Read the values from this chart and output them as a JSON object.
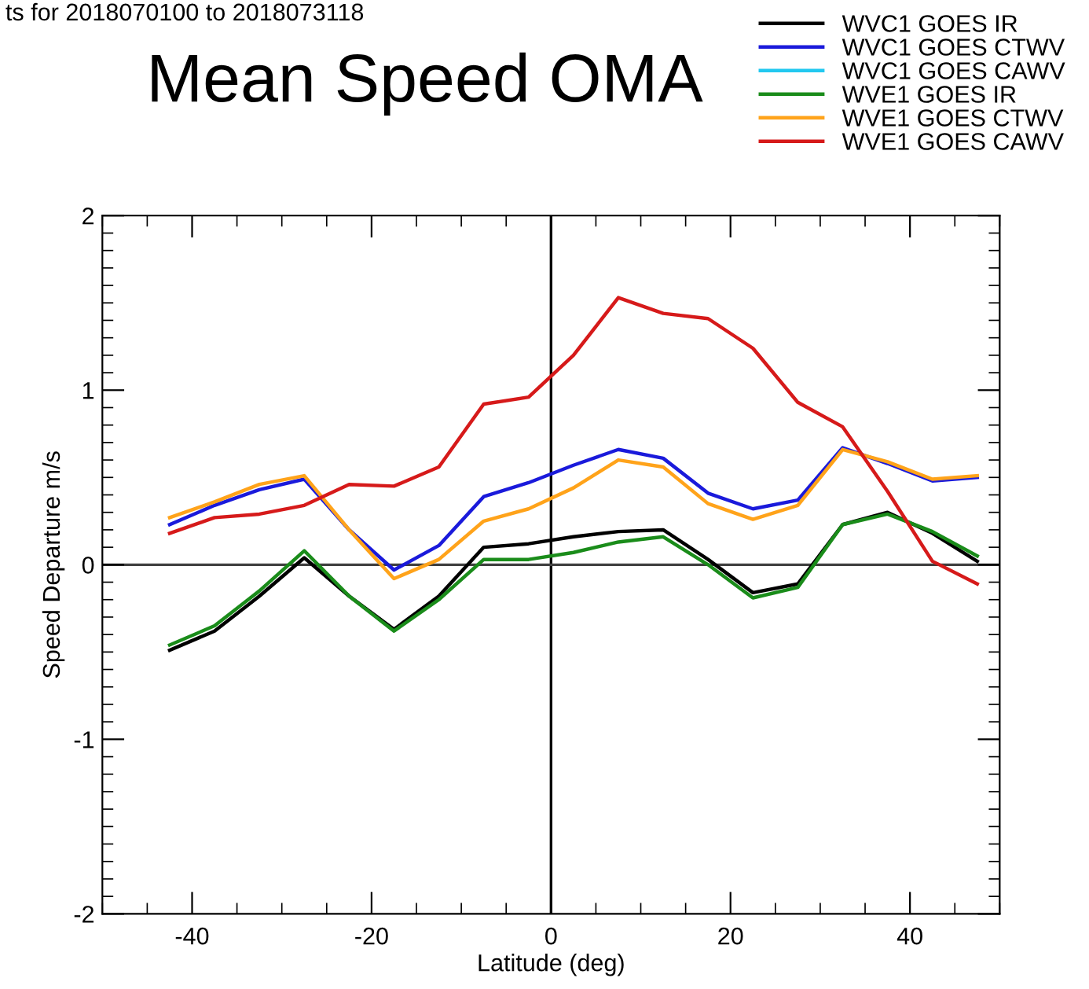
{
  "chart_data": {
    "type": "line",
    "title": "Mean Speed OMA",
    "xlabel": "Latitude (deg)",
    "ylabel": "Speed Departure m/s",
    "annotations": [
      "ts for 2018070100 to 2018073118"
    ],
    "x": [
      -42.5,
      -37.5,
      -32.5,
      -27.5,
      -22.5,
      -17.5,
      -12.5,
      -7.5,
      -2.5,
      2.5,
      7.5,
      12.5,
      17.5,
      22.5,
      27.5,
      32.5,
      37.5,
      42.5,
      47.5
    ],
    "series": [
      {
        "name": "WVC1 GOES IR",
        "color": "#000000",
        "values": [
          -0.49,
          -0.38,
          -0.18,
          0.04,
          -0.18,
          -0.37,
          -0.18,
          0.1,
          0.12,
          0.16,
          0.19,
          0.2,
          0.03,
          -0.16,
          -0.11,
          0.23,
          0.3,
          0.18,
          0.02
        ]
      },
      {
        "name": "WVC1 GOES CTWV",
        "color": "#1a1adb",
        "values": [
          0.23,
          0.34,
          0.43,
          0.49,
          0.2,
          -0.03,
          0.11,
          0.39,
          0.47,
          0.57,
          0.66,
          0.61,
          0.41,
          0.32,
          0.37,
          0.67,
          0.58,
          0.48,
          0.5
        ]
      },
      {
        "name": "WVC1 GOES CAWV",
        "color": "#22c8f0",
        "values": [
          null,
          null,
          null,
          null,
          null,
          null,
          null,
          null,
          null,
          null,
          null,
          null,
          null,
          null,
          null,
          null,
          null,
          null,
          null
        ]
      },
      {
        "name": "WVE1 GOES IR",
        "color": "#1a8c1a",
        "values": [
          -0.46,
          -0.35,
          -0.15,
          0.08,
          -0.18,
          -0.38,
          -0.2,
          0.03,
          0.03,
          0.07,
          0.13,
          0.16,
          0.0,
          -0.19,
          -0.13,
          0.23,
          0.29,
          0.19,
          0.05
        ]
      },
      {
        "name": "WVE1 GOES CTWV",
        "color": "#ffa31a",
        "values": [
          0.27,
          0.36,
          0.46,
          0.51,
          0.2,
          -0.08,
          0.03,
          0.25,
          0.32,
          0.44,
          0.6,
          0.56,
          0.35,
          0.26,
          0.34,
          0.66,
          0.59,
          0.49,
          0.51
        ]
      },
      {
        "name": "WVE1 GOES CAWV",
        "color": "#d61a1a",
        "values": [
          0.18,
          0.27,
          0.29,
          0.34,
          0.46,
          0.45,
          0.56,
          0.92,
          0.96,
          1.2,
          1.53,
          1.44,
          1.41,
          1.24,
          0.93,
          0.79,
          0.42,
          0.02,
          -0.11
        ]
      }
    ],
    "xlim": [
      -50,
      50
    ],
    "xticks": [
      -40,
      -20,
      0,
      20,
      40
    ],
    "ylim": [
      -2,
      2
    ],
    "yticks": [
      -2,
      -1,
      0,
      1,
      2
    ],
    "ref_lines": [
      {
        "axis": "x",
        "value": 0,
        "color": "#000000"
      },
      {
        "axis": "y",
        "value": 0,
        "color": "#404040"
      }
    ],
    "legend": "top right",
    "marker": "none",
    "line_style": "solid"
  }
}
